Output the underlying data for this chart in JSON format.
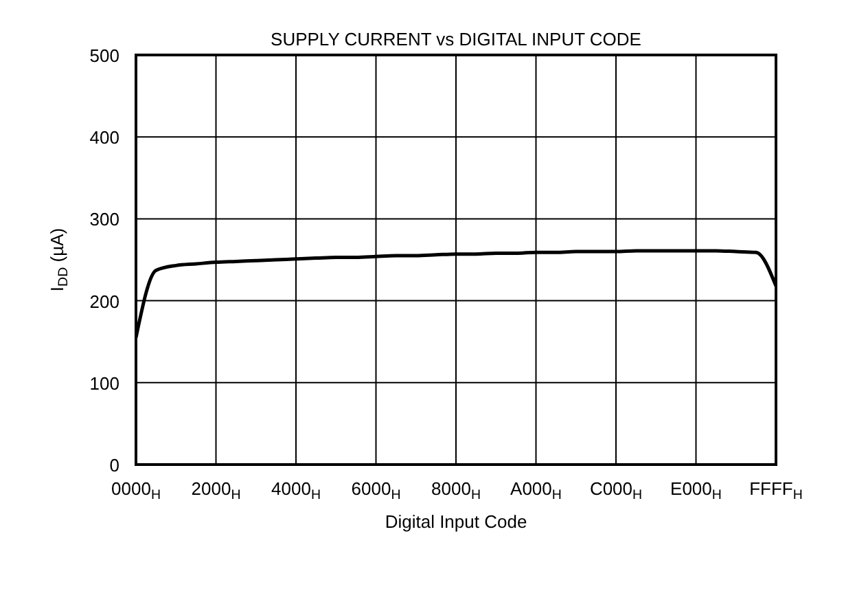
{
  "chart_data": {
    "type": "line",
    "title": "SUPPLY CURRENT vs DIGITAL INPUT CODE",
    "xlabel": "Digital Input Code",
    "ylabel": "I$_{DD}$ (µA)",
    "categories": [
      "0000$_{H}$",
      null,
      null,
      null,
      "2000$_{H}$",
      null,
      null,
      null,
      "4000$_{H}$",
      null,
      null,
      null,
      "6000$_{H}$",
      null,
      null,
      null,
      "8000$_{H}$",
      null,
      null,
      null,
      "A000$_{H}$",
      null,
      null,
      null,
      "C000$_{H}$",
      null,
      null,
      null,
      "E000$_{H}$",
      null,
      null,
      null,
      "FFFF$_{H}$"
    ],
    "series": [
      {
        "color": "#000000",
        "values": [
          155,
          237,
          243,
          245,
          247,
          248,
          249,
          250,
          251,
          252,
          253,
          253,
          254,
          255,
          255,
          256,
          257,
          257,
          258,
          258,
          259,
          259,
          260,
          260,
          260,
          261,
          261,
          261,
          261,
          261,
          260,
          259,
          218
        ]
      }
    ],
    "ylim": [
      0,
      500
    ],
    "yticks": [
      0,
      100,
      200,
      300,
      400,
      500
    ],
    "grid": true,
    "marker": "none",
    "line_style": "solid"
  }
}
